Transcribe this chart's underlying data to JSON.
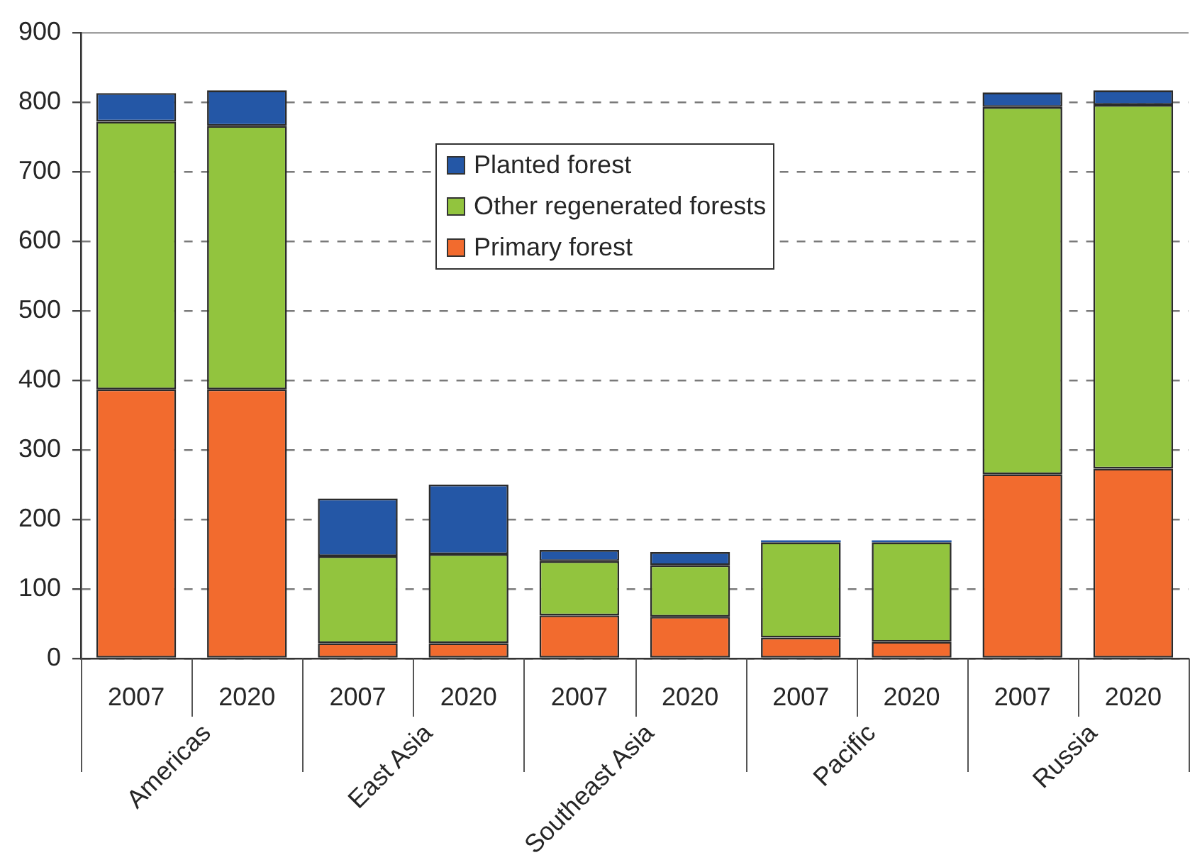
{
  "chart_data": {
    "type": "bar",
    "stacked": true,
    "categories": [
      "2007",
      "2020",
      "2007",
      "2020",
      "2007",
      "2020",
      "2007",
      "2020",
      "2007",
      "2020"
    ],
    "series": [
      {
        "name": "Primary forest",
        "color": "#f26b2e",
        "values": [
          387,
          387,
          22,
          22,
          62,
          60,
          30,
          24,
          265,
          273
        ]
      },
      {
        "name": "Other regenerated forests",
        "color": "#92c43e",
        "values": [
          385,
          379,
          125,
          128,
          78,
          74,
          137,
          143,
          528,
          523
        ]
      },
      {
        "name": "Planted forest",
        "color": "#2457a6",
        "values": [
          41,
          51,
          83,
          100,
          16,
          19,
          3,
          3,
          21,
          21
        ]
      }
    ],
    "ylim": [
      0,
      900
    ],
    "yticks": [
      0,
      100,
      200,
      300,
      400,
      500,
      600,
      700,
      800,
      900
    ],
    "grid": "y",
    "legend": "top",
    "annotations": [
      "Americas",
      "East Asia",
      "Southeast Asia",
      "Pacific",
      "Russia"
    ]
  }
}
